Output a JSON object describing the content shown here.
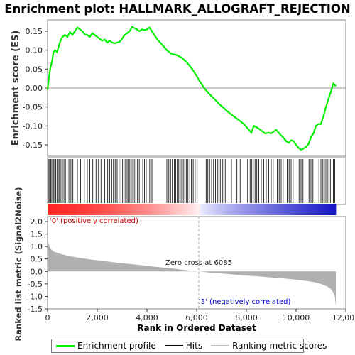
{
  "chart_data": {
    "type": "line",
    "title": "Enrichment plot: HALLMARK_ALLOGRAFT_REJECTION",
    "top_panel": {
      "ylabel": "Enrichment score (ES)",
      "ylim": [
        -0.18,
        0.18
      ],
      "yticks": [
        -0.15,
        -0.1,
        -0.05,
        0.0,
        0.05,
        0.1,
        0.15
      ],
      "ytick_labels": [
        "-0.15",
        "-0.10",
        "-0.05",
        "0.00",
        "0.05",
        "0.10",
        "0.15"
      ],
      "series": [
        {
          "name": "Enrichment profile",
          "color": "#00ee00",
          "x": [
            0,
            60,
            120,
            180,
            240,
            300,
            380,
            450,
            520,
            600,
            700,
            800,
            900,
            1000,
            1100,
            1200,
            1300,
            1400,
            1500,
            1600,
            1700,
            1800,
            1900,
            2000,
            2100,
            2200,
            2300,
            2400,
            2500,
            2600,
            2700,
            2800,
            2900,
            3000,
            3100,
            3200,
            3300,
            3400,
            3500,
            3600,
            3700,
            3800,
            3900,
            4000,
            4100,
            4200,
            4400,
            4600,
            4800,
            5000,
            5200,
            5400,
            5600,
            5800,
            6000,
            6100,
            6300,
            6500,
            6700,
            6900,
            7100,
            7300,
            7500,
            7700,
            7900,
            8100,
            8200,
            8300,
            8450,
            8600,
            8750,
            8900,
            9000,
            9100,
            9200,
            9300,
            9400,
            9500,
            9600,
            9700,
            9800,
            9900,
            10000,
            10100,
            10200,
            10300,
            10400,
            10500,
            10600,
            10700,
            10800,
            10900,
            11000,
            11100,
            11200,
            11300,
            11400,
            11500,
            11600
          ],
          "y": [
            -0.005,
            0.03,
            0.055,
            0.07,
            0.095,
            0.1,
            0.095,
            0.11,
            0.125,
            0.135,
            0.14,
            0.135,
            0.148,
            0.14,
            0.15,
            0.16,
            0.155,
            0.15,
            0.142,
            0.14,
            0.135,
            0.145,
            0.14,
            0.135,
            0.13,
            0.125,
            0.128,
            0.12,
            0.125,
            0.12,
            0.118,
            0.12,
            0.122,
            0.13,
            0.14,
            0.145,
            0.15,
            0.162,
            0.158,
            0.155,
            0.15,
            0.155,
            0.153,
            0.155,
            0.16,
            0.15,
            0.13,
            0.115,
            0.1,
            0.09,
            0.087,
            0.08,
            0.068,
            0.052,
            0.032,
            0.02,
            0.0,
            -0.015,
            -0.028,
            -0.042,
            -0.053,
            -0.065,
            -0.075,
            -0.085,
            -0.095,
            -0.11,
            -0.118,
            -0.1,
            -0.105,
            -0.112,
            -0.12,
            -0.118,
            -0.12,
            -0.115,
            -0.11,
            -0.118,
            -0.125,
            -0.132,
            -0.14,
            -0.145,
            -0.138,
            -0.14,
            -0.15,
            -0.158,
            -0.163,
            -0.16,
            -0.155,
            -0.148,
            -0.13,
            -0.12,
            -0.1,
            -0.095,
            -0.095,
            -0.075,
            -0.05,
            -0.03,
            -0.01,
            0.012,
            0.005
          ]
        }
      ]
    },
    "hits_panel": {
      "name": "Hits",
      "x": [
        20,
        55,
        90,
        130,
        170,
        210,
        250,
        290,
        330,
        380,
        430,
        480,
        540,
        600,
        660,
        720,
        790,
        860,
        940,
        1020,
        1100,
        1200,
        1330,
        1480,
        1600,
        1700,
        1820,
        1950,
        2050,
        2150,
        2300,
        2420,
        2500,
        2580,
        2650,
        2720,
        2800,
        2880,
        2950,
        3020,
        3080,
        3140,
        3200,
        3250,
        3310,
        3370,
        3430,
        3490,
        3550,
        3620,
        3690,
        3760,
        3830,
        3900,
        3970,
        4040,
        4110,
        4200,
        4800,
        4880,
        4950,
        5020,
        5100,
        5160,
        5220,
        5280,
        5340,
        5400,
        5460,
        5520,
        5580,
        5650,
        5720,
        5790,
        5860,
        5940,
        6020,
        6380,
        6450,
        6520,
        6600,
        6680,
        6760,
        6850,
        6950,
        7050,
        7150,
        7300,
        7400,
        7500,
        7620,
        7750,
        7900,
        8050,
        8150,
        8220,
        8280,
        8350,
        8420,
        8500,
        8600,
        8700,
        8800,
        8900,
        9000,
        9080,
        9160,
        9240,
        9320,
        9400,
        9480,
        9560,
        9640,
        9720,
        9800,
        9880,
        9960,
        10040,
        10120,
        10200,
        10280,
        10360,
        10440,
        10520,
        10600,
        10680,
        10760,
        10840,
        10920,
        11000,
        11080,
        11140,
        11200,
        11260,
        11320,
        11380,
        11440,
        11500,
        11560
      ]
    },
    "ranked_panel": {
      "ylabel": "Ranked list metric (Signal2Noise)",
      "ylim": [
        -1.5,
        2.2
      ],
      "yticks": [
        -1.5,
        -1.0,
        -0.5,
        0.0,
        0.5,
        1.0,
        1.5,
        2.0
      ],
      "ytick_labels": [
        "-1.5",
        "-1.0",
        "-0.5",
        "0.0",
        "0.5",
        "1.0",
        "1.5",
        "2.0"
      ],
      "x": [
        0,
        30,
        80,
        150,
        250,
        400,
        600,
        900,
        1300,
        1800,
        2400,
        3000,
        3600,
        4200,
        4800,
        5400,
        6085,
        6600,
        7200,
        7800,
        8400,
        9000,
        9600,
        10200,
        10700,
        11000,
        11250,
        11400,
        11500,
        11560,
        11600
      ],
      "y": [
        1.4,
        1.15,
        0.98,
        0.88,
        0.8,
        0.74,
        0.68,
        0.61,
        0.54,
        0.47,
        0.4,
        0.33,
        0.27,
        0.2,
        0.14,
        0.07,
        0.0,
        -0.05,
        -0.1,
        -0.15,
        -0.19,
        -0.24,
        -0.29,
        -0.35,
        -0.42,
        -0.5,
        -0.6,
        -0.7,
        -0.85,
        -1.0,
        -1.38
      ],
      "zero_cross_label": "Zero cross at 6085",
      "pos_label": "'0' (positively correlated)",
      "neg_label": "'3' (negatively correlated)",
      "zero_cross_x": 6085
    },
    "xlabel": "Rank in Ordered Dataset",
    "xlim": [
      0,
      12000
    ],
    "xticks": [
      0,
      2000,
      4000,
      6000,
      8000,
      10000,
      12000
    ],
    "xtick_labels": [
      "0",
      "2,000",
      "4,000",
      "6,000",
      "8,000",
      "10,000",
      "12,000"
    ],
    "n_ranked": 11600
  },
  "legend": {
    "items": [
      {
        "label": "Enrichment profile",
        "color": "#00ee00"
      },
      {
        "label": "Hits",
        "color": "#000000"
      },
      {
        "label": "Ranking metric scores",
        "color": "#bbbbbb"
      }
    ]
  },
  "colors": {
    "positive_label": "#cc0000",
    "negative_label": "#0000cc",
    "ranked_fill": "#b0b0b0"
  }
}
